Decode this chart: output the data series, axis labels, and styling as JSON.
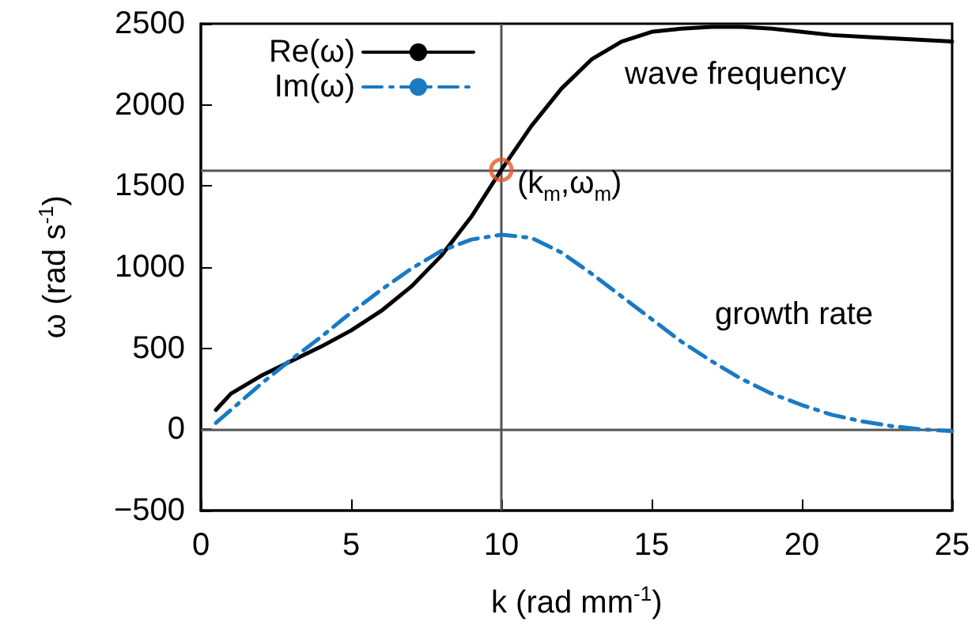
{
  "chart_data": {
    "type": "line",
    "xlabel": "k (rad mm$^{-1}$)",
    "ylabel": "ω (rad s$^{-1}$)",
    "xlim": [
      0,
      25
    ],
    "xticks": [
      0,
      5,
      10,
      15,
      20,
      25
    ],
    "ylim": [
      -500,
      2500
    ],
    "yticks": [
      -500,
      0,
      500,
      1000,
      1500,
      2000,
      2500
    ],
    "grid": false,
    "legend": "top left",
    "marker": "none",
    "series": [
      {
        "name": "Re(ω)",
        "color": "#000000",
        "line_style": "solid",
        "x": [
          0.5,
          1,
          2,
          3,
          4,
          5,
          6,
          7,
          8,
          9,
          10,
          11,
          12,
          13,
          14,
          15,
          16,
          17,
          18,
          19,
          20,
          21,
          22,
          23,
          24,
          25
        ],
        "values": [
          120,
          220,
          330,
          420,
          510,
          610,
          730,
          880,
          1070,
          1310,
          1600,
          1870,
          2100,
          2280,
          2390,
          2450,
          2470,
          2480,
          2480,
          2470,
          2450,
          2430,
          2420,
          2410,
          2400,
          2390
        ]
      },
      {
        "name": "Im(ω)",
        "color": "#1a7ac4",
        "line_style": "dashed",
        "x": [
          0.5,
          1,
          2,
          3,
          4,
          5,
          6,
          7,
          8,
          9,
          10,
          11,
          12,
          13,
          14,
          15,
          16,
          17,
          18,
          19,
          20,
          21,
          22,
          23,
          24,
          25
        ],
        "values": [
          40,
          120,
          280,
          430,
          570,
          720,
          860,
          990,
          1100,
          1170,
          1200,
          1180,
          1090,
          960,
          820,
          680,
          540,
          420,
          310,
          220,
          150,
          90,
          50,
          20,
          0,
          -10
        ]
      }
    ],
    "ref_lines": [
      {
        "axis": "y",
        "value": 0,
        "color": "#555555"
      },
      {
        "axis": "y",
        "value": 1600,
        "color": "#555555"
      },
      {
        "axis": "x",
        "value": 10,
        "color": "#555555"
      }
    ],
    "annotations": [
      {
        "text": "(k$_{m}$,ω$_{m}$)",
        "x": 10,
        "y": 1600
      },
      "wave frequency",
      "growth rate"
    ]
  }
}
